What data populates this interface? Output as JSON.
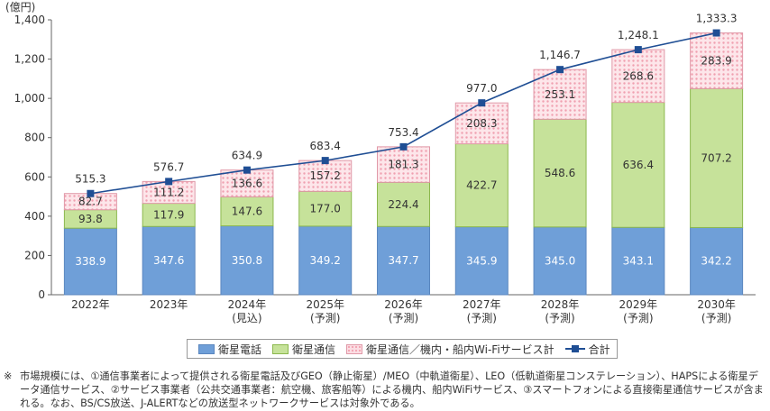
{
  "chart_data": {
    "type": "bar",
    "stacked": true,
    "unit_label": "(億円)",
    "categories": [
      [
        "2022年",
        ""
      ],
      [
        "2023年",
        ""
      ],
      [
        "2024年",
        "(見込)"
      ],
      [
        "2025年",
        "(予測)"
      ],
      [
        "2026年",
        "(予測)"
      ],
      [
        "2027年",
        "(予測)"
      ],
      [
        "2028年",
        "(予測)"
      ],
      [
        "2029年",
        "(予測)"
      ],
      [
        "2030年",
        "(予測)"
      ]
    ],
    "series": [
      {
        "name": "衛星電話",
        "color": "#6f9fd8",
        "values": [
          338.9,
          347.6,
          350.8,
          349.2,
          347.7,
          345.9,
          345.0,
          343.1,
          342.2
        ]
      },
      {
        "name": "衛星通信",
        "color": "#c6e29a",
        "values": [
          93.8,
          117.9,
          147.6,
          177.0,
          224.4,
          422.7,
          548.6,
          636.4,
          707.2
        ]
      },
      {
        "name": "衛星通信／機内・船内Wi-Fiサービス計",
        "color": "#fbdde3",
        "values": [
          82.7,
          111.2,
          136.6,
          157.2,
          181.3,
          208.3,
          253.1,
          268.6,
          283.9
        ]
      }
    ],
    "line": {
      "name": "合計",
      "color": "#1f4e94",
      "values": [
        515.3,
        576.7,
        634.9,
        683.4,
        753.4,
        977.0,
        1146.7,
        1248.1,
        1333.3
      ],
      "labels": [
        "515.3",
        "576.7",
        "634.9",
        "683.4",
        "753.4",
        "977.0",
        "1,146.7",
        "1,248.1",
        "1,333.3"
      ]
    },
    "ylim": [
      0,
      1400
    ],
    "yticks": [
      0,
      200,
      400,
      600,
      800,
      1000,
      1200,
      1400
    ],
    "ytick_labels": [
      "0",
      "200",
      "400",
      "600",
      "800",
      "1,000",
      "1,200",
      "1,400"
    ],
    "grid": false,
    "legend_placement": "bottom"
  },
  "legend": {
    "s1": "衛星電話",
    "s2": "衛星通信",
    "s3": "衛星通信／機内・船内Wi-Fiサービス計",
    "line": "合計"
  },
  "note": {
    "mark": "※",
    "text": "市場規模には、①通信事業者によって提供される衛星電話及びGEO（静止衛星）/MEO（中軌道衛星）、LEO（低軌道衛星コンステレーション）、HAPSによる衛星データ通信サービス、②サービス事業者（公共交通事業者：航空機、旅客船等）による機内、船内WiFiサービス、③スマートフォンによる直接衛星通信サービスが含まれる。なお、BS/CS放送、J-ALERTなどの放送型ネットワークサービスは対象外である。"
  }
}
